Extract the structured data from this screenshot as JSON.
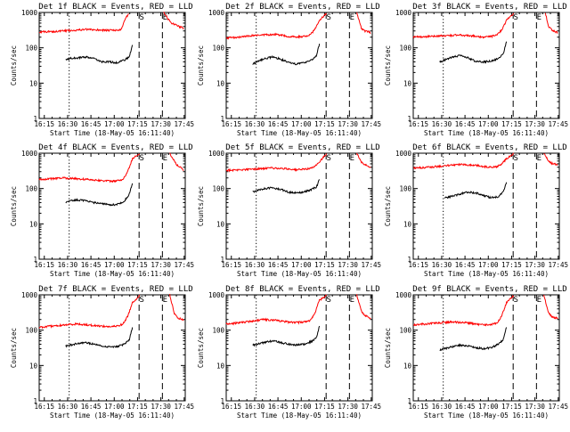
{
  "figure": {
    "background": "#ffffff"
  },
  "chart_data": [
    {
      "type": "line",
      "title": "Det 1f BLACK = Events, RED = LLD",
      "xlabel": "Start Time (18-May-05 16:11:40)",
      "ylabel": "Counts/sec",
      "yscale": "log",
      "ylim": [
        1,
        1000
      ],
      "xlim": [
        0,
        94
      ],
      "x_ticks": [
        "16:15",
        "16:30",
        "16:45",
        "17:00",
        "17:15",
        "17:30",
        "17:45"
      ],
      "y_ticks": [
        "1",
        "10",
        "100",
        "1000"
      ],
      "series": [
        {
          "color": "#ff0000",
          "x": [
            0,
            10,
            20,
            30,
            40,
            45,
            48,
            50,
            53,
            55,
            58,
            65,
            70,
            75,
            80,
            85,
            88,
            90,
            92,
            93
          ],
          "y": [
            280,
            290,
            310,
            330,
            320,
            310,
            315,
            310,
            330,
            600,
            1000,
            null,
            null,
            null,
            1000,
            500,
            450,
            400,
            380,
            360
          ]
        },
        {
          "color": "#000000",
          "x": [
            17,
            20,
            25,
            30,
            35,
            40,
            45,
            50,
            55,
            58,
            60
          ],
          "y": [
            45,
            50,
            52,
            55,
            50,
            40,
            40,
            38,
            45,
            55,
            120
          ]
        }
      ],
      "markers": [
        {
          "x": 19.3,
          "style": "dotted"
        },
        {
          "x": 64.3,
          "style": "dashed",
          "label": "S"
        },
        {
          "x": 79.3,
          "style": "dashed",
          "label": "E"
        }
      ]
    },
    {
      "type": "line",
      "title": "Det 2f BLACK = Events, RED = LLD",
      "xlabel": "Start Time (18-May-05 16:11:40)",
      "ylabel": "Counts/sec",
      "yscale": "log",
      "ylim": [
        1,
        1000
      ],
      "xlim": [
        0,
        94
      ],
      "x_ticks": [
        "16:15",
        "16:30",
        "16:45",
        "17:00",
        "17:15",
        "17:30",
        "17:45"
      ],
      "y_ticks": [
        "1",
        "10",
        "100",
        "1000"
      ],
      "series": [
        {
          "color": "#ff0000",
          "x": [
            0,
            8,
            16,
            24,
            32,
            40,
            46,
            50,
            54,
            57,
            60,
            65,
            70,
            75,
            80,
            84,
            87,
            89,
            92,
            93
          ],
          "y": [
            190,
            200,
            220,
            230,
            240,
            210,
            205,
            210,
            230,
            330,
            600,
            1000,
            null,
            null,
            null,
            1000,
            350,
            300,
            280,
            260
          ]
        },
        {
          "color": "#000000",
          "x": [
            17,
            20,
            25,
            30,
            35,
            40,
            45,
            50,
            55,
            58,
            60
          ],
          "y": [
            35,
            40,
            50,
            55,
            48,
            38,
            35,
            38,
            45,
            60,
            130
          ]
        }
      ],
      "markers": [
        {
          "x": 19.3,
          "style": "dotted"
        },
        {
          "x": 64.3,
          "style": "dashed",
          "label": "S"
        },
        {
          "x": 79.3,
          "style": "dashed",
          "label": "E"
        }
      ]
    },
    {
      "type": "line",
      "title": "Det 3f BLACK = Events, RED = LLD",
      "xlabel": "Start Time (18-May-05 16:11:40)",
      "ylabel": "Counts/sec",
      "yscale": "log",
      "ylim": [
        1,
        1000
      ],
      "xlim": [
        0,
        94
      ],
      "x_ticks": [
        "16:15",
        "16:30",
        "16:45",
        "17:00",
        "17:15",
        "17:30",
        "17:45"
      ],
      "y_ticks": [
        "1",
        "10",
        "100",
        "1000"
      ],
      "series": [
        {
          "color": "#ff0000",
          "x": [
            0,
            10,
            20,
            30,
            40,
            45,
            50,
            54,
            57,
            60,
            65,
            70,
            75,
            80,
            85,
            87,
            89,
            91,
            93
          ],
          "y": [
            200,
            210,
            220,
            230,
            215,
            200,
            210,
            230,
            330,
            600,
            1000,
            null,
            null,
            null,
            1000,
            400,
            330,
            290,
            270
          ]
        },
        {
          "color": "#000000",
          "x": [
            17,
            20,
            25,
            30,
            35,
            40,
            45,
            50,
            55,
            58,
            60
          ],
          "y": [
            40,
            45,
            55,
            60,
            52,
            42,
            40,
            42,
            50,
            70,
            150
          ]
        }
      ],
      "markers": [
        {
          "x": 19.3,
          "style": "dotted"
        },
        {
          "x": 64.3,
          "style": "dashed",
          "label": "S"
        },
        {
          "x": 79.3,
          "style": "dashed",
          "label": "E"
        }
      ]
    },
    {
      "type": "line",
      "title": "Det 4f BLACK = Events, RED = LLD",
      "xlabel": "Start Time (18-May-05 16:11:40)",
      "ylabel": "Counts/sec",
      "yscale": "log",
      "ylim": [
        1,
        1000
      ],
      "xlim": [
        0,
        94
      ],
      "x_ticks": [
        "16:15",
        "16:30",
        "16:45",
        "17:00",
        "17:15",
        "17:30",
        "17:45"
      ],
      "y_ticks": [
        "1",
        "10",
        "100",
        "1000"
      ],
      "series": [
        {
          "color": "#ff0000",
          "x": [
            0,
            8,
            16,
            24,
            32,
            40,
            46,
            50,
            54,
            57,
            60,
            65,
            70,
            75,
            80,
            84,
            87,
            89,
            92,
            93
          ],
          "y": [
            180,
            190,
            200,
            190,
            180,
            170,
            160,
            165,
            180,
            300,
            700,
            1000,
            null,
            null,
            null,
            1000,
            600,
            450,
            380,
            330
          ]
        },
        {
          "color": "#000000",
          "x": [
            17,
            20,
            25,
            30,
            35,
            40,
            45,
            50,
            55,
            58,
            60
          ],
          "y": [
            40,
            45,
            48,
            45,
            40,
            38,
            35,
            35,
            45,
            70,
            140
          ]
        }
      ],
      "markers": [
        {
          "x": 19.3,
          "style": "dotted"
        },
        {
          "x": 64.3,
          "style": "dashed",
          "label": "S"
        },
        {
          "x": 79.3,
          "style": "dashed",
          "label": "E"
        }
      ]
    },
    {
      "type": "line",
      "title": "Det 5f BLACK = Events, RED = LLD",
      "xlabel": "Start Time (18-May-05 16:11:40)",
      "ylabel": "Counts/sec",
      "yscale": "log",
      "ylim": [
        1,
        1000
      ],
      "xlim": [
        0,
        94
      ],
      "x_ticks": [
        "16:15",
        "16:30",
        "16:45",
        "17:00",
        "17:15",
        "17:30",
        "17:45"
      ],
      "y_ticks": [
        "1",
        "10",
        "100",
        "1000"
      ],
      "series": [
        {
          "color": "#ff0000",
          "x": [
            0,
            10,
            20,
            30,
            40,
            45,
            50,
            55,
            58,
            61,
            65,
            70,
            75,
            80,
            84,
            87,
            89,
            92,
            93
          ],
          "y": [
            330,
            340,
            360,
            380,
            360,
            340,
            350,
            380,
            450,
            650,
            1000,
            null,
            null,
            null,
            1000,
            550,
            480,
            420,
            400
          ]
        },
        {
          "color": "#000000",
          "x": [
            17,
            20,
            25,
            30,
            35,
            40,
            45,
            50,
            55,
            58,
            60
          ],
          "y": [
            80,
            90,
            100,
            105,
            95,
            80,
            75,
            80,
            95,
            110,
            180
          ]
        }
      ],
      "markers": [
        {
          "x": 19.3,
          "style": "dotted"
        },
        {
          "x": 64.3,
          "style": "dashed",
          "label": "S"
        },
        {
          "x": 79.3,
          "style": "dashed",
          "label": "E"
        }
      ]
    },
    {
      "type": "line",
      "title": "Det 6f BLACK = Events, RED = LLD",
      "xlabel": "Start Time (18-May-05 16:11:40)",
      "ylabel": "Counts/sec",
      "yscale": "log",
      "ylim": [
        1,
        1000
      ],
      "xlim": [
        0,
        94
      ],
      "x_ticks": [
        "16:15",
        "16:30",
        "16:45",
        "17:00",
        "17:15",
        "17:30",
        "17:45"
      ],
      "y_ticks": [
        "1",
        "10",
        "100",
        "1000"
      ],
      "series": [
        {
          "color": "#ff0000",
          "x": [
            0,
            10,
            20,
            30,
            40,
            45,
            50,
            54,
            57,
            60,
            65,
            70,
            75,
            80,
            84,
            87,
            89,
            92,
            93
          ],
          "y": [
            380,
            400,
            440,
            480,
            460,
            420,
            400,
            420,
            500,
            700,
            1000,
            null,
            null,
            null,
            1000,
            600,
            520,
            480,
            460
          ]
        },
        {
          "color": "#000000",
          "x": [
            20,
            25,
            30,
            35,
            40,
            45,
            50,
            55,
            58,
            60
          ],
          "y": [
            55,
            60,
            70,
            80,
            75,
            65,
            55,
            60,
            80,
            150
          ]
        }
      ],
      "markers": [
        {
          "x": 19.3,
          "style": "dotted"
        },
        {
          "x": 64.3,
          "style": "dashed",
          "label": "S"
        },
        {
          "x": 79.3,
          "style": "dashed",
          "label": "E"
        }
      ]
    },
    {
      "type": "line",
      "title": "Det 7f BLACK = Events, RED = LLD",
      "xlabel": "Start Time (18-May-05 16:11:40)",
      "ylabel": "Counts/sec",
      "yscale": "log",
      "ylim": [
        1,
        1000
      ],
      "xlim": [
        0,
        94
      ],
      "x_ticks": [
        "16:15",
        "16:30",
        "16:45",
        "17:00",
        "17:15",
        "17:30",
        "17:45"
      ],
      "y_ticks": [
        "1",
        "10",
        "100",
        "1000"
      ],
      "series": [
        {
          "color": "#ff0000",
          "x": [
            0,
            8,
            16,
            24,
            32,
            40,
            46,
            50,
            54,
            57,
            60,
            65,
            70,
            75,
            80,
            84,
            87,
            89,
            92,
            93
          ],
          "y": [
            120,
            130,
            140,
            150,
            140,
            130,
            125,
            130,
            150,
            250,
            600,
            1000,
            null,
            null,
            null,
            1000,
            300,
            220,
            200,
            190
          ]
        },
        {
          "color": "#000000",
          "x": [
            17,
            20,
            25,
            30,
            35,
            40,
            45,
            50,
            55,
            58,
            60
          ],
          "y": [
            35,
            38,
            42,
            45,
            40,
            36,
            34,
            35,
            40,
            55,
            120
          ]
        }
      ],
      "markers": [
        {
          "x": 19.3,
          "style": "dotted"
        },
        {
          "x": 64.3,
          "style": "dashed",
          "label": "S"
        },
        {
          "x": 79.3,
          "style": "dashed",
          "label": "E"
        }
      ]
    },
    {
      "type": "line",
      "title": "Det 8f BLACK = Events, RED = LLD",
      "xlabel": "Start Time (18-May-05 16:11:40)",
      "ylabel": "Counts/sec",
      "yscale": "log",
      "ylim": [
        1,
        1000
      ],
      "xlim": [
        0,
        94
      ],
      "x_ticks": [
        "16:15",
        "16:30",
        "16:45",
        "17:00",
        "17:15",
        "17:30",
        "17:45"
      ],
      "y_ticks": [
        "1",
        "10",
        "100",
        "1000"
      ],
      "series": [
        {
          "color": "#ff0000",
          "x": [
            0,
            8,
            16,
            24,
            32,
            40,
            46,
            50,
            54,
            57,
            60,
            65,
            70,
            75,
            80,
            84,
            87,
            89,
            92,
            93
          ],
          "y": [
            150,
            160,
            180,
            200,
            190,
            170,
            165,
            170,
            190,
            300,
            700,
            1000,
            null,
            null,
            null,
            1000,
            350,
            260,
            230,
            220
          ]
        },
        {
          "color": "#000000",
          "x": [
            17,
            20,
            25,
            30,
            35,
            40,
            45,
            50,
            55,
            58,
            60
          ],
          "y": [
            38,
            40,
            45,
            50,
            45,
            40,
            38,
            40,
            48,
            60,
            130
          ]
        }
      ],
      "markers": [
        {
          "x": 19.3,
          "style": "dotted"
        },
        {
          "x": 64.3,
          "style": "dashed",
          "label": "S"
        },
        {
          "x": 79.3,
          "style": "dashed",
          "label": "E"
        }
      ]
    },
    {
      "type": "line",
      "title": "Det 9f BLACK = Events, RED = LLD",
      "xlabel": "Start Time (18-May-05 16:11:40)",
      "ylabel": "Counts/sec",
      "yscale": "log",
      "ylim": [
        1,
        1000
      ],
      "xlim": [
        0,
        94
      ],
      "x_ticks": [
        "16:15",
        "16:30",
        "16:45",
        "17:00",
        "17:15",
        "17:30",
        "17:45"
      ],
      "y_ticks": [
        "1",
        "10",
        "100",
        "1000"
      ],
      "series": [
        {
          "color": "#ff0000",
          "x": [
            0,
            8,
            16,
            24,
            32,
            40,
            46,
            50,
            54,
            57,
            60,
            65,
            70,
            75,
            80,
            84,
            87,
            89,
            92,
            93
          ],
          "y": [
            140,
            150,
            160,
            170,
            165,
            150,
            140,
            145,
            160,
            260,
            600,
            1000,
            null,
            null,
            null,
            1000,
            320,
            240,
            220,
            210
          ]
        },
        {
          "color": "#000000",
          "x": [
            17,
            20,
            25,
            30,
            35,
            40,
            45,
            50,
            55,
            58,
            60
          ],
          "y": [
            28,
            30,
            34,
            38,
            36,
            32,
            30,
            32,
            40,
            55,
            120
          ]
        }
      ],
      "markers": [
        {
          "x": 19.3,
          "style": "dotted"
        },
        {
          "x": 64.3,
          "style": "dashed",
          "label": "S"
        },
        {
          "x": 79.3,
          "style": "dashed",
          "label": "E"
        }
      ]
    }
  ]
}
